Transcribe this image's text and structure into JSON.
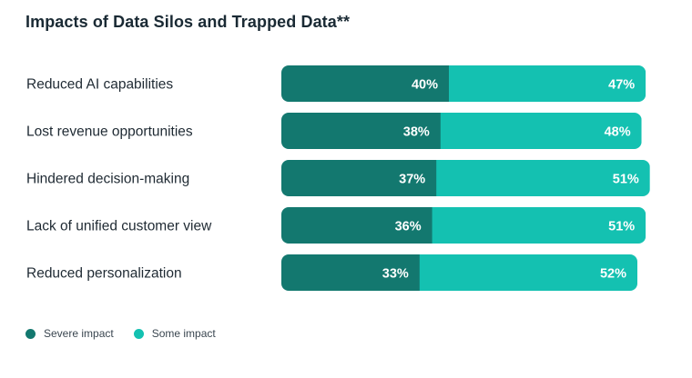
{
  "chart_data": {
    "type": "bar",
    "orientation": "horizontal",
    "stacked": true,
    "title": "Impacts of Data Silos and Trapped Data**",
    "categories": [
      "Reduced AI capabilities",
      "Lost revenue opportunities",
      "Hindered decision-making",
      "Lack of unified customer view",
      "Reduced personalization"
    ],
    "series": [
      {
        "name": "Severe impact",
        "color": "#13786f",
        "values": [
          40,
          38,
          37,
          36,
          33
        ],
        "labels": [
          "40%",
          "38%",
          "37%",
          "36%",
          "33%"
        ]
      },
      {
        "name": "Some impact",
        "color": "#14c1b1",
        "values": [
          47,
          48,
          51,
          51,
          52
        ],
        "labels": [
          "47%",
          "48%",
          "51%",
          "51%",
          "52%"
        ]
      }
    ],
    "xlim": [
      0,
      100
    ],
    "grid": false,
    "legend": "bottom-left"
  }
}
